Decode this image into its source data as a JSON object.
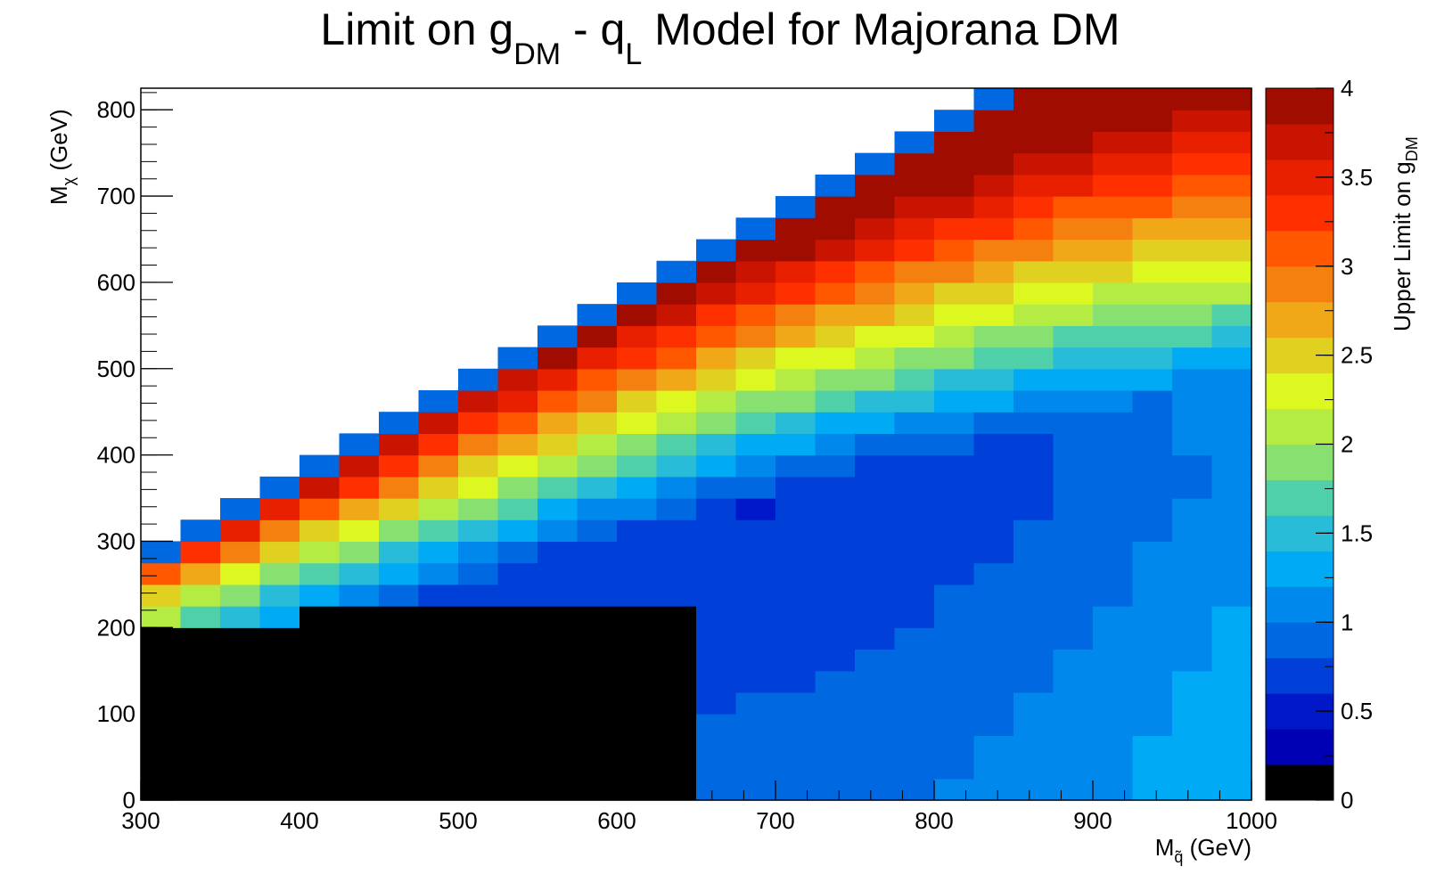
{
  "chart_data": {
    "type": "heatmap",
    "title": {
      "pre": "Limit on g",
      "sub1": "DM",
      "mid": " - q",
      "sub2": "L",
      "post": " Model for Majorana DM"
    },
    "xlabel": {
      "main": "M",
      "sub": "q̃",
      "post": " (GeV)"
    },
    "ylabel": {
      "main": "M",
      "sub": "χ",
      "post": " (GeV)"
    },
    "zlabel": {
      "main": "Upper Limit on g",
      "sub": "DM"
    },
    "xlim": [
      300,
      1000
    ],
    "ylim": [
      0,
      825
    ],
    "zlim": [
      0,
      4
    ],
    "x_ticks": [
      "300",
      "400",
      "500",
      "600",
      "700",
      "800",
      "900",
      "1000"
    ],
    "y_ticks": [
      "0",
      "100",
      "200",
      "300",
      "400",
      "500",
      "600",
      "700",
      "800"
    ],
    "z_ticks": [
      "0",
      "0.5",
      "1",
      "1.5",
      "2",
      "2.5",
      "3",
      "3.5",
      "4"
    ],
    "x_bin_width": 25,
    "y_bin_width": 25,
    "diagonal_limit": "M_chi < M_q",
    "palette": [
      "#000000",
      "#0000b4",
      "#0018c8",
      "#0040d8",
      "#0068e0",
      "#0088ec",
      "#00aaf4",
      "#28bcd8",
      "#50d0a8",
      "#88e070",
      "#b4ec44",
      "#dcf820",
      "#e0d020",
      "#f0a818",
      "#f48010",
      "#ff5800",
      "#ff3000",
      "#e82000",
      "#c81400",
      "#a00c00"
    ],
    "colors": {
      "frame": "#000000",
      "below_threshold": "#000000"
    }
  }
}
